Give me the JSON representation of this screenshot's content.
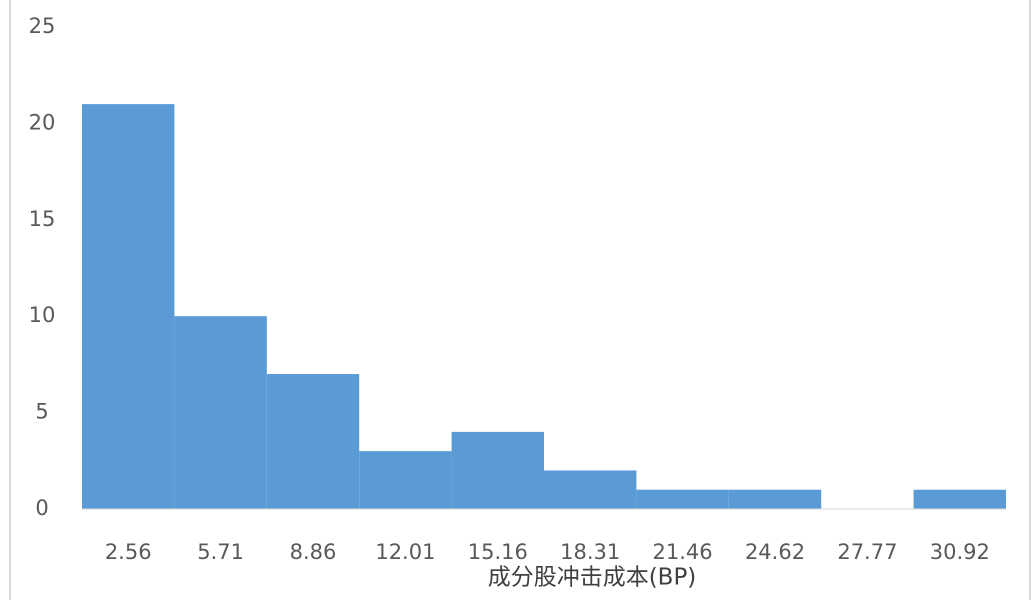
{
  "chart_data": {
    "type": "bar",
    "x_label": "成分股冲击成本(BP)",
    "categories": [
      "2.56",
      "5.71",
      "8.86",
      "12.01",
      "15.16",
      "18.31",
      "21.46",
      "24.62",
      "27.77",
      "30.92"
    ],
    "values": [
      21,
      10,
      7,
      3,
      4,
      2,
      1,
      1,
      0,
      1
    ],
    "color": "#5b9bd5",
    "ylim": [
      0,
      25
    ],
    "yticks": [
      0,
      5,
      10,
      15,
      20,
      25
    ],
    "grid": false
  }
}
